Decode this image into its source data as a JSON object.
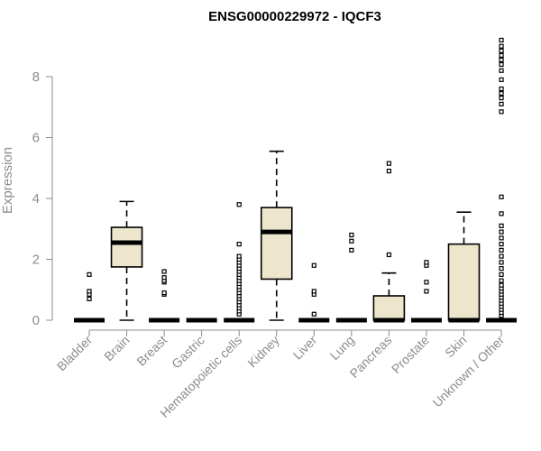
{
  "chart_data": {
    "type": "boxplot",
    "title": "ENSG00000229972 - IQCF3",
    "ylabel": "Expression",
    "xlabel": "",
    "ylim": [
      0,
      9.2
    ],
    "yticks": [
      0,
      2,
      4,
      6,
      8
    ],
    "grid": false,
    "legend": "none",
    "colors": {
      "box_fill": "#ede6cc",
      "box_stroke": "#000000",
      "axis": "#8c8c8c"
    },
    "categories": [
      "Bladder",
      "Brain",
      "Breast",
      "Gastric",
      "Hematopoietic cells",
      "Kidney",
      "Liver",
      "Lung",
      "Pancreas",
      "Prostate",
      "Skin",
      "Unknown / Other"
    ],
    "boxes": [
      {
        "min": 0,
        "q1": 0,
        "median": 0,
        "q3": 0,
        "max": 0,
        "outliers": [
          0.7,
          0.85,
          0.95,
          1.5
        ]
      },
      {
        "min": 0,
        "q1": 1.75,
        "median": 2.55,
        "q3": 3.05,
        "max": 3.9,
        "outliers": []
      },
      {
        "min": 0,
        "q1": 0,
        "median": 0,
        "q3": 0,
        "max": 0,
        "outliers": [
          0.85,
          0.9,
          1.25,
          1.3,
          1.4,
          1.6
        ]
      },
      {
        "min": 0,
        "q1": 0,
        "median": 0,
        "q3": 0,
        "max": 0,
        "outliers": []
      },
      {
        "min": 0,
        "q1": 0,
        "median": 0,
        "q3": 0,
        "max": 0,
        "outliers": [
          0.2,
          0.3,
          0.4,
          0.5,
          0.6,
          0.7,
          0.8,
          0.9,
          1.0,
          1.1,
          1.2,
          1.3,
          1.4,
          1.5,
          1.6,
          1.7,
          1.8,
          1.9,
          2.0,
          2.1,
          2.5,
          3.8
        ]
      },
      {
        "min": 0,
        "q1": 1.35,
        "median": 2.9,
        "q3": 3.7,
        "max": 5.55,
        "outliers": []
      },
      {
        "min": 0,
        "q1": 0,
        "median": 0,
        "q3": 0,
        "max": 0,
        "outliers": [
          0.2,
          0.85,
          0.95,
          1.8
        ]
      },
      {
        "min": 0,
        "q1": 0,
        "median": 0,
        "q3": 0,
        "max": 0,
        "outliers": [
          2.3,
          2.6,
          2.8
        ]
      },
      {
        "min": 0,
        "q1": 0,
        "median": 0,
        "q3": 0.8,
        "max": 1.55,
        "outliers": [
          2.15,
          4.9,
          5.15
        ]
      },
      {
        "min": 0,
        "q1": 0,
        "median": 0,
        "q3": 0,
        "max": 0,
        "outliers": [
          0.95,
          1.25,
          1.8,
          1.9
        ]
      },
      {
        "min": 0,
        "q1": 0,
        "median": 0,
        "q3": 2.5,
        "max": 3.55,
        "outliers": []
      },
      {
        "min": 0,
        "q1": 0,
        "median": 0,
        "q3": 0,
        "max": 0,
        "outliers": [
          0.15,
          0.25,
          0.35,
          0.45,
          0.55,
          0.65,
          0.75,
          0.85,
          0.95,
          1.05,
          1.15,
          1.3,
          1.5,
          1.7,
          1.9,
          2.1,
          2.3,
          2.5,
          2.7,
          2.9,
          3.1,
          3.5,
          4.05,
          6.85,
          7.1,
          7.3,
          7.45,
          7.6,
          7.9,
          8.2,
          8.4,
          8.55,
          8.7,
          8.85,
          9.0,
          9.2
        ]
      }
    ]
  }
}
